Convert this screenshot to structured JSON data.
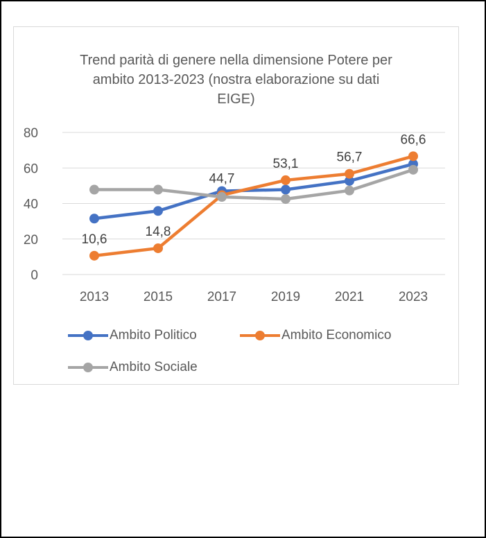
{
  "chart_data": {
    "type": "line",
    "title": "Trend parità di genere nella dimensione Potere per ambito 2013-2023 (nostra elaborazione su dati EIGE)",
    "title_lines": [
      "Trend parità di genere nella dimensione Potere per",
      "ambito 2013-2023 (nostra elaborazione su dati",
      "EIGE)"
    ],
    "categories": [
      "2013",
      "2015",
      "2017",
      "2019",
      "2021",
      "2023"
    ],
    "ylim": [
      0,
      80
    ],
    "yticks": [
      "0",
      "20",
      "40",
      "60",
      "80"
    ],
    "grid": true,
    "legend_position": "bottom",
    "series": [
      {
        "name": "Ambito Politico",
        "color": "#4472c4",
        "values": [
          31.5,
          35.8,
          47.0,
          47.8,
          52.7,
          62.2
        ]
      },
      {
        "name": "Ambito Economico",
        "color": "#ed7d31",
        "values": [
          10.6,
          14.8,
          44.7,
          53.1,
          56.7,
          66.6
        ],
        "data_labels": [
          "10,6",
          "14,8",
          "44,7",
          "53,1",
          "56,7",
          "66,6"
        ]
      },
      {
        "name": "Ambito Sociale",
        "color": "#a5a5a5",
        "values": [
          47.8,
          47.8,
          43.7,
          42.5,
          47.3,
          59.0
        ]
      }
    ]
  }
}
